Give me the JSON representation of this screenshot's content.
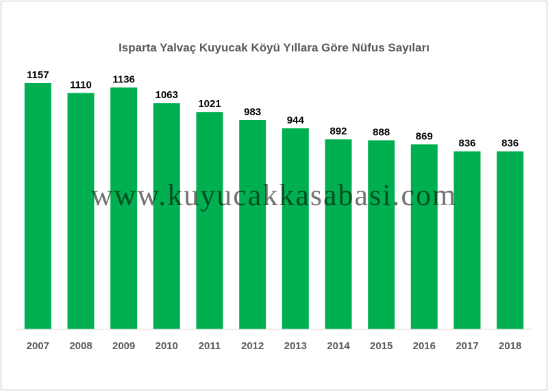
{
  "chart_data": {
    "type": "bar",
    "title": "Isparta Yalvaç Kuyucak Köyü Yıllara Göre Nüfus Sayıları",
    "categories": [
      "2007",
      "2008",
      "2009",
      "2010",
      "2011",
      "2012",
      "2013",
      "2014",
      "2015",
      "2016",
      "2017",
      "2018"
    ],
    "values": [
      1157,
      1110,
      1136,
      1063,
      1021,
      983,
      944,
      892,
      888,
      869,
      836,
      836
    ],
    "xlabel": "",
    "ylabel": "",
    "ylim": [
      0,
      1200
    ],
    "grid": false,
    "legend": "none",
    "bar_color": "#00b050"
  },
  "watermark": "www.kuyucakkasabasi.com"
}
